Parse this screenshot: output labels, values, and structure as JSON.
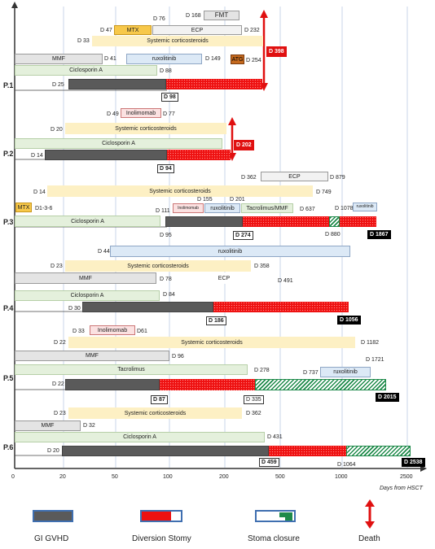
{
  "axis": {
    "ticks": [
      "0",
      "20",
      "50",
      "100",
      "200",
      "500",
      "1000",
      "2500"
    ],
    "xlabel": "Days from HSCT"
  },
  "patients": {
    "p1": {
      "label": "P.1",
      "fmt": "FMT",
      "fmt_day": "D 168",
      "mtx": "MTX",
      "mtx_day": "D 47",
      "ecp": "ECP",
      "ecp_day_start": "D 76",
      "ecp_day_end": "D 232",
      "steroids": "Systemic corticosteroids",
      "steroids_day": "D 33",
      "mmf": "MMF",
      "ruxo": "ruxolitinib",
      "ruxo_day_start": "D 41",
      "ruxo_day_end": "D 149",
      "atg": "ATG",
      "atg_day": "D 254",
      "ciclo": "Ciclosporin A",
      "ciclo_day": "D 88",
      "gvhd_day": "D 25",
      "stomy_day": "D 98",
      "death": "D 398"
    },
    "p2": {
      "label": "P.2",
      "inolimomab": "Inolimomab",
      "ino_day_start": "D 49",
      "ino_day_end": "D 77",
      "steroids": "Systemic corticosteroids",
      "steroids_day": "D 20",
      "ciclo": "Ciclosporin A",
      "gvhd_day": "D 14",
      "stomy_day": "D 94",
      "death": "D 202"
    },
    "p3": {
      "label": "P.3",
      "ecp": "ECP",
      "ecp_day_start": "D 362",
      "ecp_day_end": "D 879",
      "steroids": "Systemic corticosteroids",
      "steroids_day_start": "D 14",
      "steroids_day_end": "D 749",
      "mtx": "MTX",
      "mtx_day": "D1-3-6",
      "ino": "Inolimomab",
      "ino_day_start": "D 111",
      "ino_day_end": "D 155",
      "ruxo": "ruxolitinib",
      "ruxo_day": "D 201",
      "tacro": "Tacrolimus/MMF",
      "tacro_day": "D 637",
      "ruxo2": "ruxolitinib",
      "ruxo2_day": "D 1078",
      "ciclo": "Ciclosporin A",
      "ciclo_day": "D 95",
      "stomy_day": "D 274",
      "closure_day": "D 880",
      "end": "D 1867"
    },
    "p4": {
      "label": "P.4",
      "ruxo": "ruxolitinib",
      "ruxo_day": "D 44",
      "steroids": "Systemic corticosteroids",
      "steroids_day_start": "D 23",
      "steroids_day_end": "D 358",
      "mmf": "MMF",
      "mmf_day": "D 78",
      "ecp": "ECP",
      "ecp_day": "D 491",
      "ciclo": "Ciclosporin A",
      "ciclo_day": "D 84",
      "gvhd_day": "D 30",
      "stomy_day": "D 186",
      "end": "D 1056"
    },
    "p5": {
      "label": "P.5",
      "ino": "Inolimomab",
      "ino_day_start": "D 33",
      "ino_day_end": "D61",
      "steroids": "Systemic corticosteroids",
      "steroids_day_start": "D 22",
      "steroids_day_end": "D 1182",
      "mmf": "MMF",
      "mmf_day": "D 96",
      "tacro": "Tacrolimus",
      "tacro_day": "D 278",
      "ruxo": "ruxolitinib",
      "ruxo_day_start": "D 737",
      "ruxo_day_end": "D 1721",
      "gvhd_day": "D 22",
      "stomy_day": "D 87",
      "closure_day": "D 335",
      "end": "D 2015"
    },
    "p6": {
      "label": "P.6",
      "steroids": "Systemic corticosteroids",
      "steroids_day_start": "D 23",
      "steroids_day_end": "D 362",
      "mmf": "MMF",
      "mmf_day": "D 32",
      "ciclo": "Ciclosporin A",
      "ciclo_day": "D 431",
      "gvhd_day": "D 20",
      "stomy_day": "D 459",
      "closure_day": "D 1064",
      "end": "D 2538"
    }
  },
  "legend": {
    "gvhd": "GI GVHD",
    "stomy": "Diversion Stomy",
    "closure": "Stoma closure",
    "death": "Death"
  },
  "colors": {
    "gvhd": "#5a5a5a",
    "stomy": "#ee1111",
    "closure": "#1e8a4a",
    "death": "#e01010",
    "steroids": "#fdf0c4",
    "ciclosporin": "#e4f0dc",
    "ruxolitinib": "#dce9f6",
    "mmf": "#e4e4e4"
  }
}
